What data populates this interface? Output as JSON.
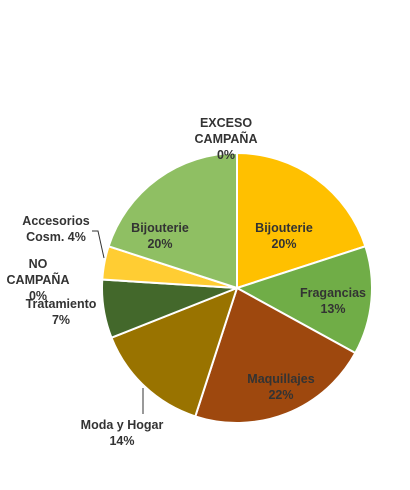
{
  "chart_data": {
    "type": "pie",
    "title": "",
    "slices": [
      {
        "label": "EXCESO CAMPAÑA",
        "label_lines": [
          "EXCESO",
          "CAMPAÑA"
        ],
        "value_label": "0%",
        "value": 0,
        "color": "#FFC000"
      },
      {
        "label": "Bijouterie",
        "label_lines": [
          "Bijouterie"
        ],
        "value_label": "20%",
        "value": 20,
        "color": "#FFC000"
      },
      {
        "label": "Fragancias",
        "label_lines": [
          "Fragancias"
        ],
        "value_label": "13%",
        "value": 13,
        "color": "#70AD47"
      },
      {
        "label": "Maquillajes",
        "label_lines": [
          "Maquillajes"
        ],
        "value_label": "22%",
        "value": 22,
        "color": "#9E480E"
      },
      {
        "label": "Moda y Hogar",
        "label_lines": [
          "Moda y Hogar"
        ],
        "value_label": "14%",
        "value": 14,
        "color": "#997300"
      },
      {
        "label": "Tratamiento",
        "label_lines": [
          "Tratamiento"
        ],
        "value_label": "7%",
        "value": 7,
        "color": "#43682B"
      },
      {
        "label": "NO CAMPAÑA",
        "label_lines": [
          "NO",
          "CAMPAÑA"
        ],
        "value_label": "0%",
        "value": 0,
        "color": "#FFD966"
      },
      {
        "label": "Accesorios Cosm.",
        "label_lines": [
          "Accesorios",
          "Cosm. 4%"
        ],
        "value_label": "",
        "value": 4,
        "color": "#FFCD33"
      },
      {
        "label": "Bijouterie",
        "label_lines": [
          "Bijouterie"
        ],
        "value_label": "20%",
        "value": 20,
        "color": "#8FBF63"
      }
    ]
  }
}
